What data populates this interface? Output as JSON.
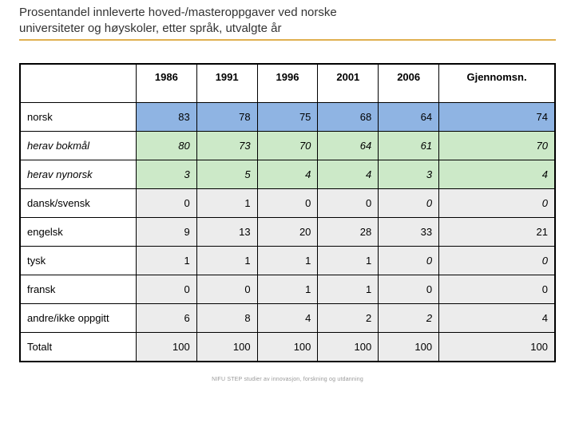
{
  "title_line1": "Prosentandel innleverte hoved-/masteroppgaver ved norske",
  "title_line2": "universiteter og høyskoler, etter språk, utvalgte år",
  "columns": [
    "1986",
    "1991",
    "1996",
    "2001",
    "2006",
    "Gjennomsn."
  ],
  "rows": [
    {
      "label": "norsk",
      "vals": [
        "83",
        "78",
        "75",
        "68",
        "64",
        "74"
      ],
      "cls": "blue",
      "ital": [
        0,
        0,
        0,
        0,
        0,
        0
      ],
      "lital": 0
    },
    {
      "label": "herav bokmål",
      "vals": [
        "80",
        "73",
        "70",
        "64",
        "61",
        "70"
      ],
      "cls": "green",
      "ital": [
        1,
        1,
        1,
        1,
        1,
        1
      ],
      "lital": 1
    },
    {
      "label": "herav nynorsk",
      "vals": [
        "3",
        "5",
        "4",
        "4",
        "3",
        "4"
      ],
      "cls": "green",
      "ital": [
        1,
        1,
        1,
        1,
        1,
        1
      ],
      "lital": 1
    },
    {
      "label": "dansk/svensk",
      "vals": [
        "0",
        "1",
        "0",
        "0",
        "0",
        "0"
      ],
      "cls": "gray",
      "ital": [
        0,
        0,
        0,
        0,
        1,
        1
      ],
      "lital": 0
    },
    {
      "label": "engelsk",
      "vals": [
        "9",
        "13",
        "20",
        "28",
        "33",
        "21"
      ],
      "cls": "gray",
      "ital": [
        0,
        0,
        0,
        0,
        0,
        0
      ],
      "lital": 0
    },
    {
      "label": "tysk",
      "vals": [
        "1",
        "1",
        "1",
        "1",
        "0",
        "0"
      ],
      "cls": "gray",
      "ital": [
        0,
        0,
        0,
        0,
        1,
        1
      ],
      "lital": 0
    },
    {
      "label": "fransk",
      "vals": [
        "0",
        "0",
        "1",
        "1",
        "0",
        "0"
      ],
      "cls": "gray",
      "ital": [
        0,
        0,
        0,
        0,
        0,
        0
      ],
      "lital": 0
    },
    {
      "label": "andre/ikke oppgitt",
      "vals": [
        "6",
        "8",
        "4",
        "2",
        "2",
        "4"
      ],
      "cls": "gray",
      "ital": [
        0,
        0,
        0,
        0,
        1,
        0
      ],
      "lital": 0
    },
    {
      "label": "Totalt",
      "vals": [
        "100",
        "100",
        "100",
        "100",
        "100",
        "100"
      ],
      "cls": "gray",
      "ital": [
        0,
        0,
        0,
        0,
        0,
        0
      ],
      "lital": 0
    }
  ],
  "footer": "NIFU STEP  studier av innovasjon, forskning og utdanning",
  "colors": {
    "blue": "#8fb4e3",
    "green": "#cce9c8",
    "gray": "#ececec",
    "title_underline": "#e0b050"
  }
}
